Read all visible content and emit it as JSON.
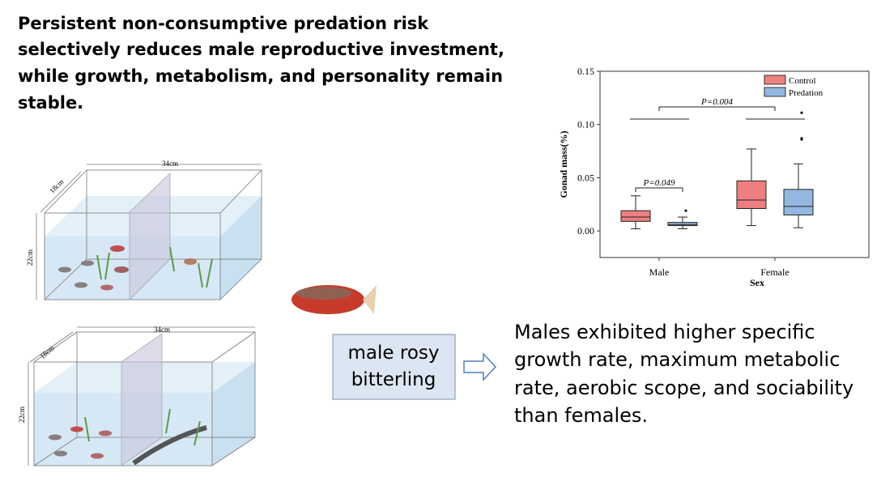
{
  "title_lines": [
    "Persistent non-consumptive predation risk",
    "selectively reduces male reproductive investment,",
    "while growth, metabolism, and personality remain",
    "stable."
  ],
  "tanks": [
    {
      "length": "34cm",
      "width": "18cm",
      "height": "22cm"
    },
    {
      "length": "34cm",
      "width": "18cm",
      "height": "22cm"
    }
  ],
  "fish_label_lines": [
    "male rosy",
    "bitterling"
  ],
  "result_lines": [
    "Males exhibited higher specific",
    "growth rate, maximum metabolic",
    "rate, aerobic scope, and sociability",
    "than females."
  ],
  "chart_data": {
    "type": "box",
    "xlabel": "Sex",
    "ylabel": "Gonad mass(%)",
    "categories": [
      "Male",
      "Female"
    ],
    "ylim": [
      -0.025,
      0.15
    ],
    "yticks": [
      {
        "value": 0,
        "label": "0.00"
      },
      {
        "value": 0.05,
        "label": "0.05"
      },
      {
        "value": 0.1,
        "label": "0.10"
      },
      {
        "value": 0.15,
        "label": "0.15"
      }
    ],
    "legend": "upper right",
    "series": [
      {
        "name": "Control",
        "color": "#ef7f7f",
        "whisker_low": [
          0.002,
          0.005
        ],
        "q1": [
          0.009,
          0.021
        ],
        "median": [
          0.013,
          0.029
        ],
        "q3": [
          0.019,
          0.047
        ],
        "whisker_high": [
          0.033,
          0.077
        ],
        "outliers": [
          [],
          []
        ]
      },
      {
        "name": "Predation",
        "color": "#93b7e0",
        "whisker_low": [
          0.002,
          0.003
        ],
        "q1": [
          0.005,
          0.015
        ],
        "median": [
          0.006,
          0.023
        ],
        "q3": [
          0.008,
          0.039
        ],
        "whisker_high": [
          0.013,
          0.063
        ],
        "outliers": [
          [
            0.019
          ],
          [
            0.086,
            0.087,
            0.111
          ]
        ]
      }
    ],
    "annotations": [
      "P=0.049",
      "P=0.004"
    ]
  }
}
